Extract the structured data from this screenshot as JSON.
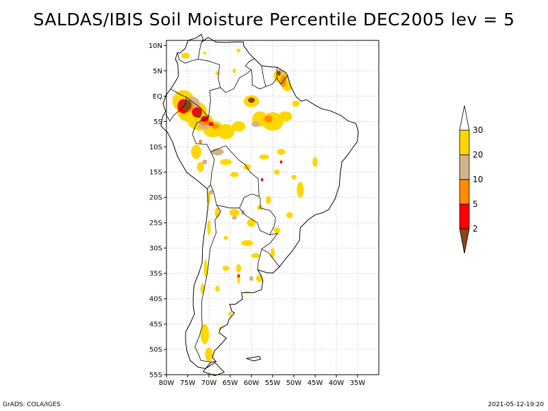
{
  "title": "SALDAS/IBIS Soil Moisture Percentile DEC2005 lev = 5",
  "map": {
    "lon_range": [
      -80,
      -30
    ],
    "lat_range": [
      -55,
      11
    ],
    "lon_ticks": [
      {
        "value": -80,
        "label": "80W"
      },
      {
        "value": -75,
        "label": "75W"
      },
      {
        "value": -70,
        "label": "70W"
      },
      {
        "value": -65,
        "label": "65W"
      },
      {
        "value": -60,
        "label": "60W"
      },
      {
        "value": -55,
        "label": "55W"
      },
      {
        "value": -50,
        "label": "50W"
      },
      {
        "value": -45,
        "label": "45W"
      },
      {
        "value": -40,
        "label": "40W"
      },
      {
        "value": -35,
        "label": "35W"
      }
    ],
    "lat_ticks": [
      {
        "value": 10,
        "label": "10N"
      },
      {
        "value": 5,
        "label": "5N"
      },
      {
        "value": 0,
        "label": "EQ"
      },
      {
        "value": -5,
        "label": "5S"
      },
      {
        "value": -10,
        "label": "10S"
      },
      {
        "value": -15,
        "label": "15S"
      },
      {
        "value": -20,
        "label": "20S"
      },
      {
        "value": -25,
        "label": "25S"
      },
      {
        "value": -30,
        "label": "30S"
      },
      {
        "value": -35,
        "label": "35S"
      },
      {
        "value": -40,
        "label": "40S"
      },
      {
        "value": -45,
        "label": "45S"
      },
      {
        "value": -50,
        "label": "50S"
      },
      {
        "value": -55,
        "label": "55S"
      }
    ],
    "grid": true,
    "grid_style": "dotted",
    "projection": "lat-lon"
  },
  "legend": {
    "placement": "right",
    "orientation": "vertical",
    "bins": [
      {
        "label": "2",
        "color": "#8B4513"
      },
      {
        "label": "5",
        "color": "#FF0000"
      },
      {
        "label": "10",
        "color": "#FF8C00"
      },
      {
        "label": "20",
        "color": "#D2B48C"
      },
      {
        "label": "30",
        "color": "#FFD700"
      },
      {
        "label": "",
        "color": "#FFFFFF"
      }
    ]
  },
  "colors": {
    "lt2": "#8B4513",
    "p2_5": "#FF0000",
    "p5_10": "#FF8C00",
    "p10_20": "#D2B48C",
    "p20_30": "#FFD700"
  },
  "footer": {
    "left": "GrADS: COLA/IGES",
    "right": "2021-05-12-19:20"
  }
}
